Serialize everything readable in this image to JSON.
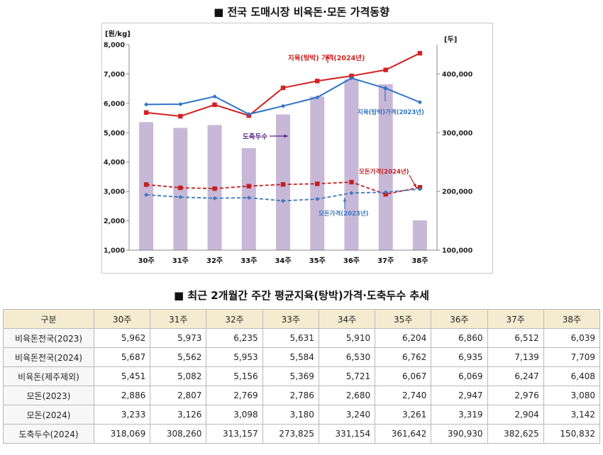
{
  "chart_title": "■ 전국 도매시장 비육돈·모돈 가격동향",
  "table_title": "■ 최근 2개월간 주간 평균지육(탕박)가격·도축두수 추세",
  "chart_data": {
    "type": "bar+line",
    "categories": [
      "30주",
      "31주",
      "32주",
      "33주",
      "34주",
      "35주",
      "36주",
      "37주",
      "38주"
    ],
    "left_axis": {
      "label": "[원/kg]",
      "ylim": [
        1000,
        8000
      ],
      "ticks": [
        "1,000",
        "2,000",
        "3,000",
        "4,000",
        "5,000",
        "6,000",
        "7,000",
        "8,000"
      ]
    },
    "right_axis": {
      "label": "[두]",
      "ylim": [
        100000,
        450000
      ],
      "ticks": [
        "100,000",
        "200,000",
        "300,000",
        "400,000"
      ]
    },
    "bars": {
      "name": "도축두수",
      "axis": "right",
      "color": "#c7b8d8",
      "values": [
        318069,
        308260,
        313157,
        273825,
        331154,
        361642,
        390930,
        382625,
        150832
      ]
    },
    "series": [
      {
        "name": "지육(탕박) 가격(2024년)",
        "axis": "left",
        "color": "#d42121",
        "style": "solid",
        "marker": "square",
        "values": [
          5687,
          5562,
          5953,
          5584,
          6530,
          6762,
          6935,
          7139,
          7709
        ]
      },
      {
        "name": "지육(탕박)가격(2023년)",
        "axis": "left",
        "color": "#2f73c5",
        "style": "solid",
        "marker": "diamond",
        "values": [
          5962,
          5973,
          6235,
          5631,
          5910,
          6204,
          6860,
          6512,
          6039
        ]
      },
      {
        "name": "모돈가격(2024년)",
        "axis": "left",
        "color": "#c41f1f",
        "style": "dashed",
        "marker": "square",
        "values": [
          3233,
          3126,
          3098,
          3180,
          3240,
          3261,
          3319,
          2904,
          3142
        ]
      },
      {
        "name": "모돈가격(2023년)",
        "axis": "left",
        "color": "#3d78bd",
        "style": "dashed",
        "marker": "diamond",
        "values": [
          2886,
          2807,
          2769,
          2786,
          2680,
          2740,
          2947,
          2976,
          3080
        ]
      }
    ],
    "annotations": [
      {
        "text": "지육(탕박) 가격(2024년)",
        "color": "#d42121"
      },
      {
        "text": "지육(탕박)가격(2023년)",
        "color": "#2f73c5"
      },
      {
        "text": "도축두수",
        "color": "#5b2a8a"
      },
      {
        "text": "모돈가격(2024년)",
        "color": "#c41f1f"
      },
      {
        "text": "모돈가격(2023년)",
        "color": "#3d78bd"
      }
    ]
  },
  "table": {
    "header": [
      "구분",
      "30주",
      "31주",
      "32주",
      "33주",
      "34주",
      "35주",
      "36주",
      "37주",
      "38주"
    ],
    "rows": [
      [
        "비육돈전국(2023)",
        "5,962",
        "5,973",
        "6,235",
        "5,631",
        "5,910",
        "6,204",
        "6,860",
        "6,512",
        "6,039"
      ],
      [
        "비육돈전국(2024)",
        "5,687",
        "5,562",
        "5,953",
        "5,584",
        "6,530",
        "6,762",
        "6,935",
        "7,139",
        "7,709"
      ],
      [
        "비육돈(제주제외)",
        "5,451",
        "5,082",
        "5,156",
        "5,369",
        "5,721",
        "6,067",
        "6,069",
        "6,247",
        "6,408"
      ],
      [
        "모돈(2023)",
        "2,886",
        "2,807",
        "2,769",
        "2,786",
        "2,680",
        "2,740",
        "2,947",
        "2,976",
        "3,080"
      ],
      [
        "모돈(2024)",
        "3,233",
        "3,126",
        "3,098",
        "3,180",
        "3,240",
        "3,261",
        "3,319",
        "2,904",
        "3,142"
      ],
      [
        "도축두수(2024)",
        "318,069",
        "308,260",
        "313,157",
        "273,825",
        "331,154",
        "361,642",
        "390,930",
        "382,625",
        "150,832"
      ]
    ]
  }
}
